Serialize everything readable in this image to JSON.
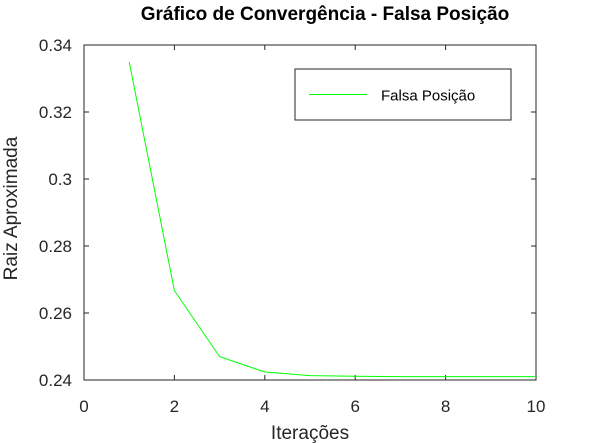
{
  "chart_data": {
    "type": "line",
    "title": "Gráfico de Convergência - Falsa Posição",
    "xlabel": "Iterações",
    "ylabel": "Raiz Aproximada",
    "xlim": [
      0,
      10
    ],
    "ylim": [
      0.24,
      0.34
    ],
    "xticks": [
      0,
      2,
      4,
      6,
      8,
      10
    ],
    "xtick_labels": [
      "0",
      "2",
      "4",
      "6",
      "8",
      "10"
    ],
    "yticks": [
      0.24,
      0.26,
      0.28,
      0.3,
      0.32,
      0.34
    ],
    "ytick_labels": [
      "0.24",
      "0.26",
      "0.28",
      "0.3",
      "0.32",
      "0.34"
    ],
    "grid": false,
    "legend_position": "top-right",
    "series": [
      {
        "name": "Falsa Posição",
        "color": "#00ff00",
        "x": [
          1,
          2,
          3,
          4,
          5,
          6,
          7,
          8,
          9,
          10
        ],
        "y": [
          0.335,
          0.2667,
          0.247,
          0.2424,
          0.2413,
          0.2411,
          0.241,
          0.241,
          0.241,
          0.241
        ]
      }
    ]
  }
}
